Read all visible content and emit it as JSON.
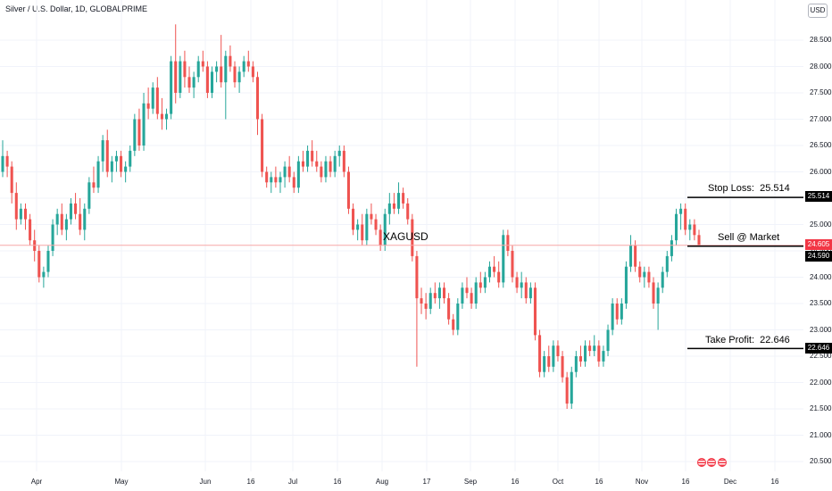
{
  "header": {
    "title": "Silver / U.S. Dollar, 1D, GLOBALPRIME",
    "currency": "USD"
  },
  "symbol_label": "XAGUSD",
  "colors": {
    "up": "#26a69a",
    "down": "#ef5350",
    "grid": "#f0f3fa",
    "line": "#000000",
    "last_price_line": "#f7a7a7"
  },
  "annotations": {
    "stop_loss": {
      "label": "Stop Loss:",
      "value": "25.514"
    },
    "entry": {
      "label": "Sell @ Market",
      "value": "24.590"
    },
    "take_profit": {
      "label": "Take Profit:",
      "value": "22.646"
    }
  },
  "price_tags": {
    "last_price": "24.605",
    "entry": "24.590",
    "stop_loss": "25.514",
    "take_profit": "22.646"
  },
  "chart_data": {
    "type": "candlestick",
    "title": "Silver / U.S. Dollar, 1D, GLOBALPRIME",
    "ylim": [
      20.3,
      29.05
    ],
    "y_ticks": [
      "20.500",
      "21.000",
      "21.500",
      "22.000",
      "22.500",
      "23.000",
      "23.500",
      "24.000",
      "24.500",
      "25.000",
      "25.500",
      "26.000",
      "26.500",
      "27.000",
      "27.500",
      "28.000",
      "28.500"
    ],
    "x_ticks": [
      "Apr",
      "May",
      "Jun",
      "16",
      "Jul",
      "16",
      "Aug",
      "17",
      "Sep",
      "16",
      "Oct",
      "16",
      "Nov",
      "16",
      "Dec",
      "16"
    ],
    "grid": true,
    "horizontal_levels": [
      {
        "name": "Stop Loss",
        "value": 25.514
      },
      {
        "name": "Sell @ Market",
        "value": 24.59
      },
      {
        "name": "Take Profit",
        "value": 22.646
      }
    ],
    "candles": [
      [
        26.0,
        26.6,
        25.9,
        26.3
      ],
      [
        26.3,
        26.4,
        25.9,
        26.1
      ],
      [
        26.1,
        26.2,
        25.4,
        25.6
      ],
      [
        25.6,
        25.8,
        24.9,
        25.1
      ],
      [
        25.1,
        25.4,
        25.0,
        25.3
      ],
      [
        25.3,
        25.4,
        24.9,
        25.1
      ],
      [
        25.1,
        25.2,
        24.6,
        24.7
      ],
      [
        24.7,
        24.9,
        24.3,
        24.5
      ],
      [
        24.5,
        24.6,
        23.9,
        24.0
      ],
      [
        24.0,
        24.2,
        23.8,
        24.1
      ],
      [
        24.1,
        24.6,
        24.0,
        24.5
      ],
      [
        24.5,
        25.1,
        24.4,
        25.0
      ],
      [
        25.0,
        25.3,
        24.8,
        25.2
      ],
      [
        25.2,
        25.4,
        24.8,
        24.9
      ],
      [
        24.9,
        25.2,
        24.7,
        25.1
      ],
      [
        25.1,
        25.5,
        25.0,
        25.4
      ],
      [
        25.4,
        25.6,
        25.1,
        25.2
      ],
      [
        25.2,
        25.5,
        24.8,
        24.9
      ],
      [
        24.9,
        25.4,
        24.7,
        25.3
      ],
      [
        25.3,
        25.9,
        25.2,
        25.8
      ],
      [
        25.8,
        26.1,
        25.6,
        25.7
      ],
      [
        25.7,
        26.3,
        25.6,
        26.2
      ],
      [
        26.2,
        26.7,
        26.0,
        26.6
      ],
      [
        26.6,
        26.8,
        25.9,
        26.0
      ],
      [
        26.0,
        26.3,
        25.8,
        26.2
      ],
      [
        26.2,
        26.4,
        26.0,
        26.3
      ],
      [
        26.3,
        26.4,
        25.9,
        26.0
      ],
      [
        26.0,
        26.2,
        25.8,
        26.1
      ],
      [
        26.1,
        26.5,
        26.0,
        26.4
      ],
      [
        26.4,
        27.1,
        26.3,
        27.0
      ],
      [
        27.0,
        27.2,
        26.4,
        26.5
      ],
      [
        26.5,
        27.5,
        26.4,
        27.3
      ],
      [
        27.3,
        27.6,
        27.0,
        27.2
      ],
      [
        27.2,
        27.7,
        27.1,
        27.6
      ],
      [
        27.6,
        27.8,
        27.0,
        27.1
      ],
      [
        27.1,
        27.4,
        26.8,
        27.0
      ],
      [
        27.0,
        27.2,
        26.8,
        27.1
      ],
      [
        27.1,
        28.2,
        27.0,
        28.1
      ],
      [
        28.1,
        28.8,
        27.3,
        27.5
      ],
      [
        27.5,
        28.2,
        27.4,
        28.1
      ],
      [
        28.1,
        28.3,
        27.6,
        27.8
      ],
      [
        27.8,
        28.0,
        27.5,
        27.6
      ],
      [
        27.6,
        27.9,
        27.4,
        27.8
      ],
      [
        27.8,
        28.2,
        27.7,
        28.1
      ],
      [
        28.1,
        28.3,
        27.9,
        28.0
      ],
      [
        28.0,
        28.1,
        27.4,
        27.5
      ],
      [
        27.5,
        28.0,
        27.4,
        27.9
      ],
      [
        27.9,
        28.1,
        27.7,
        28.0
      ],
      [
        28.0,
        28.6,
        27.6,
        27.7
      ],
      [
        27.7,
        28.3,
        27.0,
        28.2
      ],
      [
        28.2,
        28.4,
        27.9,
        28.0
      ],
      [
        28.0,
        28.1,
        27.6,
        27.7
      ],
      [
        27.7,
        28.0,
        27.5,
        27.9
      ],
      [
        27.9,
        28.2,
        27.8,
        28.1
      ],
      [
        28.1,
        28.3,
        27.9,
        28.0
      ],
      [
        28.0,
        28.1,
        27.7,
        27.8
      ],
      [
        27.8,
        27.9,
        26.7,
        27.0
      ],
      [
        27.0,
        27.1,
        25.9,
        26.0
      ],
      [
        26.0,
        26.1,
        25.7,
        25.8
      ],
      [
        25.8,
        26.0,
        25.6,
        25.9
      ],
      [
        25.9,
        26.1,
        25.7,
        25.8
      ],
      [
        25.8,
        26.0,
        25.6,
        25.9
      ],
      [
        25.9,
        26.2,
        25.7,
        26.1
      ],
      [
        26.1,
        26.3,
        25.8,
        25.9
      ],
      [
        25.9,
        26.0,
        25.6,
        25.7
      ],
      [
        25.7,
        26.3,
        25.6,
        26.2
      ],
      [
        26.2,
        26.4,
        26.0,
        26.1
      ],
      [
        26.1,
        26.5,
        26.0,
        26.4
      ],
      [
        26.4,
        26.6,
        26.1,
        26.2
      ],
      [
        26.2,
        26.4,
        26.0,
        26.1
      ],
      [
        26.1,
        26.2,
        25.8,
        25.9
      ],
      [
        25.9,
        26.3,
        25.8,
        26.2
      ],
      [
        26.2,
        26.3,
        25.9,
        26.0
      ],
      [
        26.0,
        26.4,
        25.9,
        26.3
      ],
      [
        26.3,
        26.5,
        26.1,
        26.4
      ],
      [
        26.4,
        26.5,
        25.9,
        26.0
      ],
      [
        26.0,
        26.1,
        25.2,
        25.3
      ],
      [
        25.3,
        25.4,
        24.8,
        24.9
      ],
      [
        24.9,
        25.1,
        24.7,
        25.0
      ],
      [
        25.0,
        25.2,
        24.6,
        24.7
      ],
      [
        24.7,
        25.3,
        24.6,
        25.2
      ],
      [
        25.2,
        25.4,
        25.0,
        25.1
      ],
      [
        25.1,
        25.2,
        24.8,
        24.9
      ],
      [
        24.9,
        25.0,
        24.5,
        24.6
      ],
      [
        24.6,
        25.3,
        24.5,
        25.2
      ],
      [
        25.2,
        25.6,
        25.0,
        25.4
      ],
      [
        25.4,
        25.6,
        25.2,
        25.3
      ],
      [
        25.3,
        25.8,
        25.2,
        25.6
      ],
      [
        25.6,
        25.7,
        25.3,
        25.4
      ],
      [
        25.4,
        25.5,
        25.0,
        25.1
      ],
      [
        25.1,
        25.2,
        24.3,
        24.4
      ],
      [
        24.4,
        24.5,
        22.3,
        23.6
      ],
      [
        23.6,
        23.8,
        23.3,
        23.5
      ],
      [
        23.5,
        23.7,
        23.2,
        23.4
      ],
      [
        23.4,
        23.8,
        23.3,
        23.7
      ],
      [
        23.7,
        23.9,
        23.5,
        23.6
      ],
      [
        23.6,
        23.9,
        23.4,
        23.8
      ],
      [
        23.8,
        23.9,
        23.5,
        23.6
      ],
      [
        23.6,
        23.7,
        23.1,
        23.2
      ],
      [
        23.2,
        23.3,
        22.9,
        23.0
      ],
      [
        23.0,
        23.6,
        22.9,
        23.5
      ],
      [
        23.5,
        23.9,
        23.4,
        23.8
      ],
      [
        23.8,
        24.0,
        23.6,
        23.7
      ],
      [
        23.7,
        23.8,
        23.4,
        23.5
      ],
      [
        23.5,
        24.0,
        23.4,
        23.9
      ],
      [
        23.9,
        24.1,
        23.7,
        23.8
      ],
      [
        23.8,
        24.1,
        23.7,
        24.0
      ],
      [
        24.0,
        24.3,
        23.9,
        24.2
      ],
      [
        24.2,
        24.4,
        24.0,
        24.1
      ],
      [
        24.1,
        24.3,
        23.8,
        23.9
      ],
      [
        23.9,
        24.9,
        23.8,
        24.8
      ],
      [
        24.8,
        24.9,
        24.4,
        24.5
      ],
      [
        24.5,
        24.6,
        23.9,
        24.0
      ],
      [
        24.0,
        24.1,
        23.7,
        23.8
      ],
      [
        23.8,
        24.1,
        23.6,
        23.9
      ],
      [
        23.9,
        24.0,
        23.5,
        23.6
      ],
      [
        23.6,
        23.9,
        23.5,
        23.8
      ],
      [
        23.8,
        23.9,
        22.8,
        22.9
      ],
      [
        22.9,
        23.0,
        22.1,
        22.2
      ],
      [
        22.2,
        22.6,
        22.1,
        22.5
      ],
      [
        22.5,
        22.7,
        22.2,
        22.3
      ],
      [
        22.3,
        22.8,
        22.2,
        22.7
      ],
      [
        22.7,
        22.8,
        22.4,
        22.5
      ],
      [
        22.5,
        22.6,
        22.0,
        22.1
      ],
      [
        22.1,
        22.2,
        21.5,
        21.6
      ],
      [
        21.6,
        22.3,
        21.5,
        22.2
      ],
      [
        22.2,
        22.6,
        22.1,
        22.5
      ],
      [
        22.5,
        22.7,
        22.3,
        22.4
      ],
      [
        22.4,
        22.8,
        22.3,
        22.7
      ],
      [
        22.7,
        22.8,
        22.5,
        22.6
      ],
      [
        22.6,
        22.9,
        22.5,
        22.7
      ],
      [
        22.7,
        22.8,
        22.3,
        22.4
      ],
      [
        22.4,
        22.7,
        22.3,
        22.6
      ],
      [
        22.6,
        23.1,
        22.5,
        23.0
      ],
      [
        23.0,
        23.6,
        22.9,
        23.5
      ],
      [
        23.5,
        23.6,
        23.1,
        23.2
      ],
      [
        23.2,
        23.6,
        23.1,
        23.5
      ],
      [
        23.5,
        24.3,
        23.4,
        24.2
      ],
      [
        24.2,
        24.8,
        24.1,
        24.6
      ],
      [
        24.6,
        24.7,
        24.1,
        24.2
      ],
      [
        24.2,
        24.3,
        23.9,
        24.0
      ],
      [
        24.0,
        24.2,
        23.8,
        24.1
      ],
      [
        24.1,
        24.2,
        23.8,
        23.9
      ],
      [
        23.9,
        24.0,
        23.4,
        23.5
      ],
      [
        23.5,
        23.9,
        23.0,
        23.8
      ],
      [
        23.8,
        24.2,
        23.7,
        24.1
      ],
      [
        24.1,
        24.5,
        24.0,
        24.4
      ],
      [
        24.4,
        24.8,
        24.3,
        24.7
      ],
      [
        24.7,
        25.3,
        24.6,
        25.2
      ],
      [
        25.2,
        25.4,
        24.9,
        25.3
      ],
      [
        25.3,
        25.4,
        24.8,
        24.9
      ],
      [
        24.9,
        25.1,
        24.7,
        25.0
      ],
      [
        25.0,
        25.1,
        24.7,
        24.8
      ],
      [
        24.8,
        24.9,
        24.6,
        24.605
      ]
    ]
  }
}
